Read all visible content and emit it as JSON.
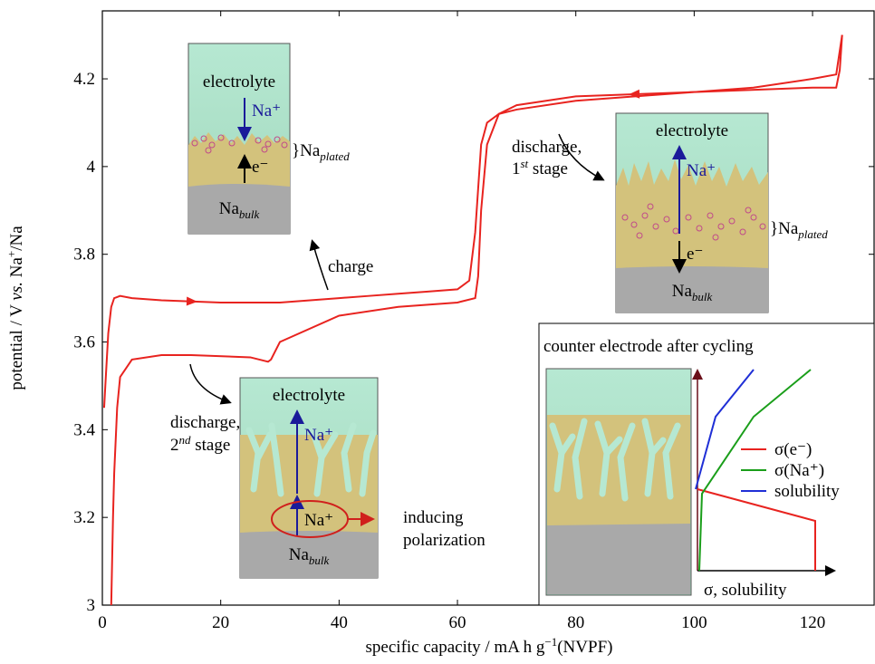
{
  "chart_data": {
    "type": "line",
    "x_label": [
      "specific capacity / mA h g",
      "−1",
      "(NVPF)"
    ],
    "y_label": [
      "potential / V ",
      "vs.",
      " Na",
      "+",
      "/Na"
    ],
    "xlim": [
      0,
      130.4
    ],
    "ylim": [
      3,
      4.355
    ],
    "xticks": [
      0,
      20,
      40,
      60,
      80,
      100,
      120
    ],
    "yticks": [
      3,
      3.2,
      3.4,
      3.6,
      3.8,
      4,
      4.2
    ],
    "series": [
      {
        "color": "#e8231f",
        "x": [
          0.3,
          0.5,
          1,
          1.5,
          2,
          3,
          5,
          10,
          20,
          30,
          40,
          45,
          50,
          55,
          60,
          62,
          63,
          63.5,
          64,
          65,
          67,
          70,
          80,
          90,
          100,
          110,
          120,
          124,
          125
        ],
        "values": [
          3.45,
          3.5,
          3.62,
          3.68,
          3.7,
          3.705,
          3.7,
          3.695,
          3.69,
          3.69,
          3.7,
          3.705,
          3.71,
          3.715,
          3.72,
          3.74,
          3.85,
          3.95,
          4.05,
          4.1,
          4.12,
          4.13,
          4.15,
          4.16,
          4.17,
          4.18,
          4.2,
          4.21,
          4.3
        ]
      },
      {
        "color": "#e8231f",
        "x": [
          125,
          124.6,
          124,
          120,
          100,
          80,
          70,
          67,
          65,
          64,
          63.5,
          63,
          60,
          50,
          40,
          30,
          28.5,
          28,
          25,
          15,
          10,
          5,
          3,
          2.5,
          2,
          1.8,
          1.5
        ],
        "values": [
          4.3,
          4.22,
          4.18,
          4.18,
          4.17,
          4.16,
          4.14,
          4.12,
          4.05,
          3.9,
          3.75,
          3.7,
          3.69,
          3.68,
          3.66,
          3.6,
          3.56,
          3.555,
          3.565,
          3.57,
          3.57,
          3.56,
          3.52,
          3.45,
          3.3,
          3.2,
          3.0
        ]
      }
    ],
    "annotations": {
      "electrolyte": "electrolyte",
      "sodium_ion": "Na⁺",
      "electron": "e⁻",
      "plated": [
        "}Na",
        "plated"
      ],
      "bulk": [
        "Na",
        "bulk"
      ],
      "charge": "charge",
      "discharge_1": [
        "discharge,",
        "1",
        "st",
        " stage"
      ],
      "discharge_2": [
        "discharge,",
        "2",
        "nd",
        " stage"
      ],
      "polarization": [
        "inducing",
        "polarization"
      ]
    },
    "counter_electrode": {
      "title": "counter electrode after cycling",
      "legend": [
        {
          "name": "σ(e⁻)",
          "color": "#e8231f"
        },
        {
          "name": "σ(Na⁺)",
          "color": "#1a9e1a"
        },
        {
          "name": "solubility",
          "color": "#1f2fd6"
        }
      ],
      "axis_label": "σ, solubility"
    }
  }
}
